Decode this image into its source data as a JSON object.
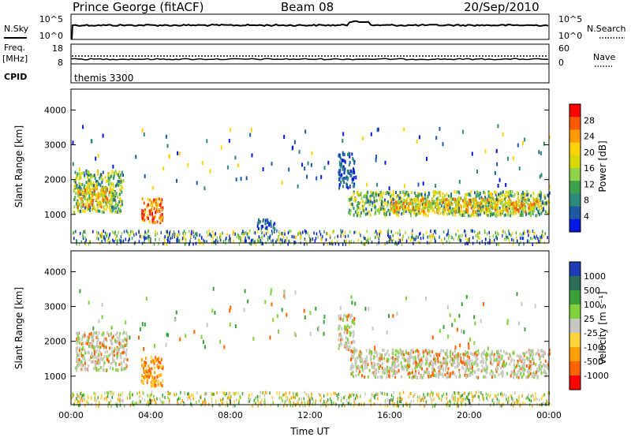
{
  "header": {
    "station": "Prince George (fitACF)",
    "beam": "Beam 08",
    "date": "20/Sep/2010"
  },
  "top_panels": {
    "nsky_label": "N.Sky",
    "nsky_ticks": [
      "10^5",
      "10^0"
    ],
    "nsearch_label": "N.Search",
    "nsearch_ticks": [
      "10^5",
      "10^0"
    ],
    "freq_label_1": "Freq.",
    "freq_label_2": "[MHz]",
    "freq_ticks": [
      "18",
      "8"
    ],
    "nave_label": "Nave",
    "nave_ticks": [
      "60",
      "0"
    ],
    "cpid_label": "CPID",
    "cpid_value": "themis 3300"
  },
  "chart_data": [
    {
      "type": "heatmap",
      "ylabel": "Slant Range [km]",
      "yticks": [
        1000,
        2000,
        3000,
        4000
      ],
      "ylim": [
        180,
        4600
      ],
      "xlim": [
        0,
        24
      ],
      "colorbar": {
        "label": "Power [dB]",
        "ticks": [
          "28",
          "24",
          "20",
          "16",
          "12",
          "8",
          "4"
        ],
        "colors": [
          "#ff0000",
          "#ff5a00",
          "#ff9a00",
          "#ffd200",
          "#d8d800",
          "#8fd24a",
          "#3fa050",
          "#2c8a7a",
          "#1e5aa0",
          "#0018e0"
        ]
      },
      "regions": [
        {
          "t0": 0.1,
          "t1": 2.6,
          "r0": 1100,
          "r1": 2300,
          "level": "mid"
        },
        {
          "t0": 0.3,
          "t1": 2.0,
          "r0": 1250,
          "r1": 1800,
          "level": "high"
        },
        {
          "t0": 3.5,
          "t1": 4.6,
          "r0": 800,
          "r1": 1500,
          "level": "peak"
        },
        {
          "t0": 13.9,
          "t1": 24.0,
          "r0": 1000,
          "r1": 1700,
          "level": "mid"
        },
        {
          "t0": 16.0,
          "t1": 23.5,
          "r0": 1100,
          "r1": 1500,
          "level": "high"
        },
        {
          "t0": 13.4,
          "t1": 14.2,
          "r0": 1800,
          "r1": 2800,
          "level": "low"
        },
        {
          "t0": 9.3,
          "t1": 10.2,
          "r0": 600,
          "r1": 900,
          "level": "low"
        }
      ]
    },
    {
      "type": "heatmap",
      "ylabel": "Slant Range [km]",
      "yticks": [
        1000,
        2000,
        3000,
        4000
      ],
      "ylim": [
        180,
        4600
      ],
      "xlim": [
        0,
        24
      ],
      "xticks": [
        "00:00",
        "04:00",
        "08:00",
        "12:00",
        "16:00",
        "20:00",
        "00:00"
      ],
      "xlabel": "Time UT",
      "colorbar": {
        "label": "Velocity [m s⁻¹]",
        "ticks": [
          "1000",
          "500",
          "100",
          "25",
          "-25",
          "-100",
          "-500",
          "-1000"
        ],
        "colors": [
          "#1e3cb4",
          "#2d6e5a",
          "#3aa03a",
          "#7fd23c",
          "#c8c8c0",
          "#ffd23c",
          "#ffa000",
          "#ff6400",
          "#ff0000"
        ]
      },
      "regions": [
        {
          "t0": 0.2,
          "t1": 2.8,
          "r0": 1200,
          "r1": 2300,
          "level": "gray"
        },
        {
          "t0": 3.5,
          "t1": 4.6,
          "r0": 750,
          "r1": 1600,
          "level": "orange"
        },
        {
          "t0": 14.0,
          "t1": 24.0,
          "r0": 1000,
          "r1": 1800,
          "level": "gray"
        },
        {
          "t0": 13.4,
          "t1": 14.2,
          "r0": 1800,
          "r1": 2800,
          "level": "gray"
        }
      ]
    }
  ]
}
